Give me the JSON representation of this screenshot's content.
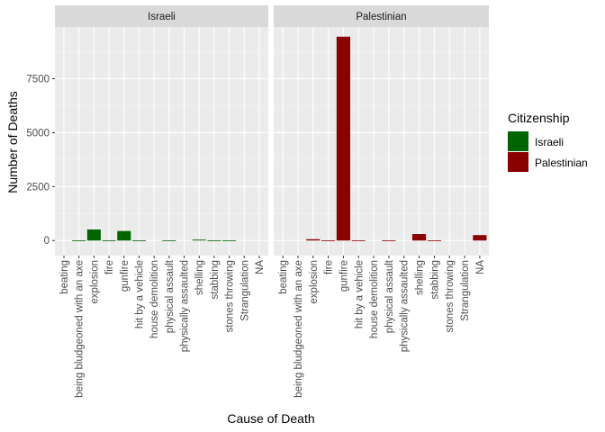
{
  "chart_data": {
    "type": "bar",
    "xlabel": "Cause of Death",
    "ylabel": "Number of Deaths",
    "ylim": [
      -700,
      9900
    ],
    "yticks": [
      0,
      2500,
      5000,
      7500
    ],
    "grid": true,
    "legend_position": "right",
    "legend": {
      "title": "Citizenship",
      "items": [
        {
          "label": "Israeli",
          "color": "#006400"
        },
        {
          "label": "Palestinian",
          "color": "#8B0000"
        }
      ]
    },
    "facets": [
      {
        "label": "Israeli",
        "color": "#006400",
        "categories": [
          "beating",
          "being bludgeoned with an axe",
          "explosion",
          "fire",
          "gunfire",
          "hit by a vehicle",
          "house demolition",
          "physical assault",
          "physically assaulted",
          "shelling",
          "stabbing",
          "stones throwing",
          "Strangulation",
          "NA"
        ],
        "values": [
          0,
          2,
          510,
          4,
          440,
          3,
          0,
          1,
          0,
          40,
          3,
          1,
          0,
          0
        ]
      },
      {
        "label": "Palestinian",
        "color": "#8B0000",
        "categories": [
          "beating",
          "being bludgeoned with an axe",
          "explosion",
          "fire",
          "gunfire",
          "hit by a vehicle",
          "house demolition",
          "physical assault",
          "physically assaulted",
          "shelling",
          "stabbing",
          "stones throwing",
          "Strangulation",
          "NA"
        ],
        "values": [
          0,
          0,
          60,
          2,
          9450,
          3,
          0,
          1,
          0,
          300,
          3,
          0,
          0,
          250
        ]
      }
    ]
  }
}
